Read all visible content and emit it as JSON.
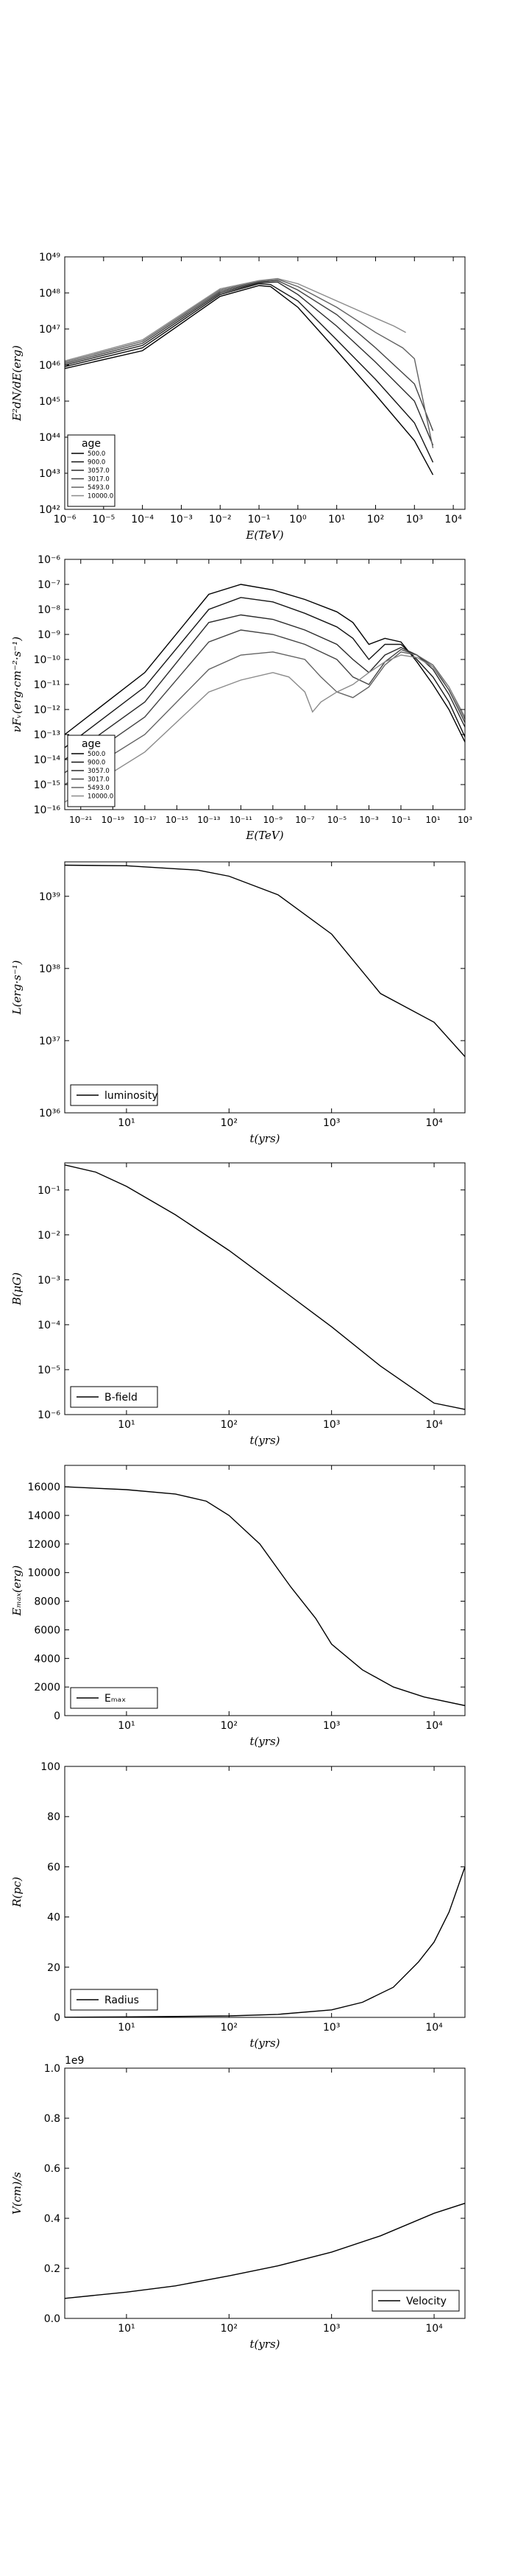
{
  "chart_data": [
    {
      "type": "line",
      "xscale": "log",
      "yscale": "log",
      "xlim": [
        1e-06,
        20000
      ],
      "ylim": [
        1e+42,
        1e+49
      ],
      "xlabel": "E(TeV)",
      "ylabel": "E²dN/dE(erg)",
      "xticks": [
        {
          "v": 1e-06,
          "l": "10⁻⁶"
        },
        {
          "v": 1e-05,
          "l": "10⁻⁵"
        },
        {
          "v": 0.0001,
          "l": "10⁻⁴"
        },
        {
          "v": 0.001,
          "l": "10⁻³"
        },
        {
          "v": 0.01,
          "l": "10⁻²"
        },
        {
          "v": 0.1,
          "l": "10⁻¹"
        },
        {
          "v": 1,
          "l": "10⁰"
        },
        {
          "v": 10,
          "l": "10¹"
        },
        {
          "v": 100,
          "l": "10²"
        },
        {
          "v": 1000,
          "l": "10³"
        },
        {
          "v": 10000,
          "l": "10⁴"
        }
      ],
      "yticks": [
        {
          "v": 1e+42,
          "l": "10⁴²"
        },
        {
          "v": 1e+43,
          "l": "10⁴³"
        },
        {
          "v": 1e+44,
          "l": "10⁴⁴"
        },
        {
          "v": 1e+45,
          "l": "10⁴⁵"
        },
        {
          "v": 1e+46,
          "l": "10⁴⁶"
        },
        {
          "v": 1e+47,
          "l": "10⁴⁷"
        },
        {
          "v": 1e+48,
          "l": "10⁴⁸"
        },
        {
          "v": 1e+49,
          "l": "10⁴⁹"
        }
      ],
      "legend": {
        "title": "age",
        "position": "lower-left"
      },
      "series": [
        {
          "name": "500.0",
          "color": "#000000",
          "x": [
            1e-06,
            0.0001,
            0.01,
            0.1,
            0.2,
            1,
            10,
            100,
            1000,
            3000
          ],
          "y": [
            8e+45,
            2.5e+46,
            8e+47,
            1.6e+48,
            1.5e+48,
            4e+47,
            2.5e+46,
            1.5e+45,
            8e+43,
            9e+42
          ]
        },
        {
          "name": "900.0",
          "color": "#141414",
          "x": [
            1e-06,
            0.0001,
            0.01,
            0.1,
            0.2,
            1,
            10,
            100,
            1000,
            3000
          ],
          "y": [
            9e+45,
            3e+46,
            9e+47,
            1.8e+48,
            1.7e+48,
            6e+47,
            5e+46,
            4e+45,
            2.5e+44,
            2e+43
          ]
        },
        {
          "name": "3057.0",
          "color": "#2a2a2a",
          "x": [
            1e-06,
            0.0001,
            0.01,
            0.1,
            0.3,
            1,
            10,
            100,
            1000,
            3000
          ],
          "y": [
            1e+46,
            3.5e+46,
            1e+48,
            1.9e+48,
            2e+48,
            9e+47,
            1.2e+47,
            1.2e+46,
            1e+45,
            6e+43
          ]
        },
        {
          "name": "3017.0",
          "color": "#434343",
          "x": [
            1e-06,
            0.0001,
            0.01,
            0.1,
            0.3,
            1,
            10,
            100,
            1000,
            3000
          ],
          "y": [
            1.1e+46,
            4e+46,
            1.1e+48,
            2e+48,
            2.2e+48,
            1.2e+48,
            2.5e+47,
            3e+46,
            3e+45,
            1.5e+44
          ]
        },
        {
          "name": "5493.0",
          "color": "#626262",
          "x": [
            1e-06,
            0.0001,
            0.01,
            0.1,
            0.3,
            1,
            10,
            100,
            500,
            1000,
            3000
          ],
          "y": [
            1.2e+46,
            4.5e+46,
            1.2e+48,
            2.1e+48,
            2.4e+48,
            1.5e+48,
            4e+47,
            8e+46,
            3e+46,
            1.5e+46,
            5e+43
          ]
        },
        {
          "name": "10000.0",
          "color": "#8a8a8a",
          "x": [
            1e-06,
            0.0001,
            0.01,
            0.1,
            0.3,
            1,
            10,
            100,
            300,
            600
          ],
          "y": [
            1.3e+46,
            5e+46,
            1.3e+48,
            2.2e+48,
            2.5e+48,
            1.8e+48,
            6e+47,
            2e+47,
            1.2e+47,
            8e+46
          ]
        }
      ]
    },
    {
      "type": "line",
      "xscale": "log",
      "yscale": "log",
      "xlim": [
        1e-22,
        1000
      ],
      "ylim": [
        1e-16,
        1e-06
      ],
      "xlabel": "E(TeV)",
      "ylabel": "νFᵥ(erg·cm⁻²·s⁻¹)",
      "xticks": [
        {
          "v": 1e-21,
          "l": "10⁻²¹"
        },
        {
          "v": 1e-19,
          "l": "10⁻¹⁹"
        },
        {
          "v": 1e-17,
          "l": "10⁻¹⁷"
        },
        {
          "v": 1e-15,
          "l": "10⁻¹⁵"
        },
        {
          "v": 1e-13,
          "l": "10⁻¹³"
        },
        {
          "v": 1e-11,
          "l": "10⁻¹¹"
        },
        {
          "v": 1e-09,
          "l": "10⁻⁹"
        },
        {
          "v": 1e-07,
          "l": "10⁻⁷"
        },
        {
          "v": 1e-05,
          "l": "10⁻⁵"
        },
        {
          "v": 0.001,
          "l": "10⁻³"
        },
        {
          "v": 0.1,
          "l": "10⁻¹"
        },
        {
          "v": 10,
          "l": "10¹"
        },
        {
          "v": 1000,
          "l": "10³"
        }
      ],
      "yticks": [
        {
          "v": 1e-16,
          "l": "10⁻¹⁶"
        },
        {
          "v": 1e-15,
          "l": "10⁻¹⁵"
        },
        {
          "v": 1e-14,
          "l": "10⁻¹⁴"
        },
        {
          "v": 1e-13,
          "l": "10⁻¹³"
        },
        {
          "v": 1e-12,
          "l": "10⁻¹²"
        },
        {
          "v": 1e-11,
          "l": "10⁻¹¹"
        },
        {
          "v": 1e-10,
          "l": "10⁻¹⁰"
        },
        {
          "v": 1e-09,
          "l": "10⁻⁹"
        },
        {
          "v": 1e-08,
          "l": "10⁻⁸"
        },
        {
          "v": 1e-07,
          "l": "10⁻⁷"
        },
        {
          "v": 1e-06,
          "l": "10⁻⁶"
        }
      ],
      "legend": {
        "title": "age",
        "position": "lower-left"
      },
      "series": [
        {
          "name": "500.0",
          "color": "#000000",
          "x": [
            1e-22,
            1e-17,
            1e-13,
            1e-11,
            1e-09,
            1e-07,
            1e-05,
            0.0001,
            0.001,
            0.01,
            0.1,
            1,
            10,
            100,
            1000
          ],
          "y": [
            1e-13,
            3e-11,
            4e-08,
            1e-07,
            6e-08,
            2.5e-08,
            8e-09,
            3e-09,
            4e-10,
            7e-10,
            5e-10,
            8e-11,
            1e-11,
            1e-12,
            5e-14
          ]
        },
        {
          "name": "900.0",
          "color": "#141414",
          "x": [
            1e-22,
            1e-17,
            1e-13,
            1e-11,
            1e-09,
            1e-07,
            1e-05,
            0.0001,
            0.001,
            0.01,
            0.1,
            1,
            10,
            100,
            1000
          ],
          "y": [
            3e-14,
            8e-12,
            1e-08,
            3e-08,
            2e-08,
            7e-09,
            2e-09,
            7e-10,
            1e-10,
            4e-10,
            4e-10,
            1e-10,
            2e-11,
            2e-12,
            8e-14
          ]
        },
        {
          "name": "3057.0",
          "color": "#2a2a2a",
          "x": [
            1e-22,
            1e-17,
            1e-13,
            1e-11,
            1e-09,
            1e-07,
            1e-05,
            0.0001,
            0.001,
            0.01,
            0.1,
            1,
            10,
            100,
            1000
          ],
          "y": [
            1e-14,
            2e-12,
            3e-09,
            6e-09,
            4e-09,
            1.5e-09,
            4e-10,
            1e-10,
            3e-11,
            1.5e-10,
            3e-10,
            1.5e-10,
            4e-11,
            4e-12,
            2e-13
          ]
        },
        {
          "name": "3017.0",
          "color": "#434343",
          "x": [
            1e-22,
            1e-17,
            1e-13,
            1e-11,
            1e-09,
            1e-07,
            1e-05,
            0.0001,
            0.001,
            0.01,
            0.1,
            1,
            10,
            100,
            1000
          ],
          "y": [
            3e-15,
            5e-13,
            5e-10,
            1.5e-09,
            1e-09,
            4e-10,
            1e-10,
            2e-11,
            1e-11,
            8e-11,
            2.5e-10,
            1.5e-10,
            5e-11,
            6e-12,
            3e-13
          ]
        },
        {
          "name": "5493.0",
          "color": "#626262",
          "x": [
            1e-22,
            1e-17,
            1e-13,
            1e-11,
            1e-09,
            1e-07,
            1e-06,
            1e-05,
            0.0001,
            0.001,
            0.01,
            0.1,
            1,
            10,
            100,
            1000
          ],
          "y": [
            1e-15,
            1e-13,
            4e-11,
            1.5e-10,
            2e-10,
            1e-10,
            2e-11,
            5e-12,
            3e-12,
            8e-12,
            6e-11,
            2e-10,
            1.5e-10,
            6e-11,
            8e-12,
            4e-13
          ]
        },
        {
          "name": "10000.0",
          "color": "#8a8a8a",
          "x": [
            1e-22,
            1e-17,
            1e-13,
            1e-11,
            1e-09,
            1e-08,
            1e-07,
            3e-07,
            1e-06,
            1e-05,
            0.0001,
            0.001,
            0.01,
            0.1,
            1,
            10,
            100,
            1000
          ],
          "y": [
            2e-16,
            2e-14,
            5e-12,
            1.5e-11,
            3e-11,
            2e-11,
            5e-12,
            8e-13,
            2e-12,
            5e-12,
            1e-11,
            3e-11,
            8e-11,
            1.5e-10,
            1.2e-10,
            5e-11,
            8e-12,
            5e-13
          ]
        }
      ]
    },
    {
      "type": "line",
      "xscale": "log",
      "yscale": "log",
      "xlim": [
        2.5,
        20000
      ],
      "ylim": [
        1e+36,
        3e+39
      ],
      "xlabel": "t(yrs)",
      "ylabel": "L(erg·s⁻¹)",
      "xticks": [
        {
          "v": 10,
          "l": "10¹"
        },
        {
          "v": 100,
          "l": "10²"
        },
        {
          "v": 1000,
          "l": "10³"
        },
        {
          "v": 10000,
          "l": "10⁴"
        }
      ],
      "yticks": [
        {
          "v": 1e+36,
          "l": "10³⁶"
        },
        {
          "v": 1e+37,
          "l": "10³⁷"
        },
        {
          "v": 1e+38,
          "l": "10³⁸"
        },
        {
          "v": 1e+39,
          "l": "10³⁹"
        }
      ],
      "legend": {
        "position": "lower-left"
      },
      "series": [
        {
          "name": "luminosity",
          "color": "#000000",
          "x": [
            2.5,
            10,
            50,
            100,
            300,
            1000,
            3000,
            10000,
            20000
          ],
          "y": [
            2.7e+39,
            2.65e+39,
            2.3e+39,
            1.9e+39,
            1.05e+39,
            3e+38,
            4.5e+37,
            1.8e+37,
            6e+36
          ]
        }
      ]
    },
    {
      "type": "line",
      "xscale": "log",
      "yscale": "log",
      "xlim": [
        2.5,
        20000
      ],
      "ylim": [
        1e-06,
        0.4
      ],
      "xlabel": "t(yrs)",
      "ylabel": "B(μG)",
      "xticks": [
        {
          "v": 10,
          "l": "10¹"
        },
        {
          "v": 100,
          "l": "10²"
        },
        {
          "v": 1000,
          "l": "10³"
        },
        {
          "v": 10000,
          "l": "10⁴"
        }
      ],
      "yticks": [
        {
          "v": 1e-06,
          "l": "10⁻⁶"
        },
        {
          "v": 1e-05,
          "l": "10⁻⁵"
        },
        {
          "v": 0.0001,
          "l": "10⁻⁴"
        },
        {
          "v": 0.001,
          "l": "10⁻³"
        },
        {
          "v": 0.01,
          "l": "10⁻²"
        },
        {
          "v": 0.1,
          "l": "10⁻¹"
        }
      ],
      "legend": {
        "position": "lower-left"
      },
      "series": [
        {
          "name": "B-field",
          "color": "#000000",
          "x": [
            2.5,
            5,
            10,
            30,
            100,
            300,
            1000,
            3000,
            10000,
            20000
          ],
          "y": [
            0.36,
            0.25,
            0.12,
            0.028,
            0.0045,
            0.0007,
            9e-05,
            1.2e-05,
            1.8e-06,
            1.3e-06
          ]
        }
      ]
    },
    {
      "type": "line",
      "xscale": "log",
      "yscale": "linear",
      "xlim": [
        2.5,
        20000
      ],
      "ylim": [
        0,
        17500
      ],
      "xlabel": "t(yrs)",
      "ylabel": "Eₘₐₓ(erg)",
      "xticks": [
        {
          "v": 10,
          "l": "10¹"
        },
        {
          "v": 100,
          "l": "10²"
        },
        {
          "v": 1000,
          "l": "10³"
        },
        {
          "v": 10000,
          "l": "10⁴"
        }
      ],
      "yticks": [
        {
          "v": 0,
          "l": "0"
        },
        {
          "v": 2000,
          "l": "2000"
        },
        {
          "v": 4000,
          "l": "4000"
        },
        {
          "v": 6000,
          "l": "6000"
        },
        {
          "v": 8000,
          "l": "8000"
        },
        {
          "v": 10000,
          "l": "10000"
        },
        {
          "v": 12000,
          "l": "12000"
        },
        {
          "v": 14000,
          "l": "14000"
        },
        {
          "v": 16000,
          "l": "16000"
        }
      ],
      "legend": {
        "position": "lower-left"
      },
      "series": [
        {
          "name": "Eₘₐₓ",
          "color": "#000000",
          "x": [
            2.5,
            10,
            30,
            60,
            100,
            200,
            400,
            700,
            1000,
            2000,
            4000,
            8000,
            20000
          ],
          "y": [
            16000,
            15800,
            15500,
            15000,
            14000,
            12000,
            9000,
            6800,
            5000,
            3200,
            2000,
            1300,
            700
          ]
        }
      ]
    },
    {
      "type": "line",
      "xscale": "log",
      "yscale": "linear",
      "xlim": [
        2.5,
        20000
      ],
      "ylim": [
        0,
        100
      ],
      "xlabel": "t(yrs)",
      "ylabel": "R(pc)",
      "xticks": [
        {
          "v": 10,
          "l": "10¹"
        },
        {
          "v": 100,
          "l": "10²"
        },
        {
          "v": 1000,
          "l": "10³"
        },
        {
          "v": 10000,
          "l": "10⁴"
        }
      ],
      "yticks": [
        {
          "v": 0,
          "l": "0"
        },
        {
          "v": 20,
          "l": "20"
        },
        {
          "v": 40,
          "l": "40"
        },
        {
          "v": 60,
          "l": "60"
        },
        {
          "v": 80,
          "l": "80"
        },
        {
          "v": 100,
          "l": "100"
        }
      ],
      "legend": {
        "position": "lower-left"
      },
      "series": [
        {
          "name": "Radius",
          "color": "#000000",
          "x": [
            2.5,
            10,
            100,
            300,
            1000,
            2000,
            4000,
            7000,
            10000,
            14000,
            20000
          ],
          "y": [
            0.05,
            0.2,
            0.6,
            1.2,
            3,
            6,
            12,
            22,
            30,
            42,
            60
          ]
        }
      ]
    },
    {
      "type": "line",
      "xscale": "log",
      "yscale": "linear",
      "xlim": [
        2.5,
        20000
      ],
      "ylim": [
        0,
        1.0
      ],
      "xlabel": "t(yrs)",
      "ylabel": "V(cm)/s",
      "offset_label": "1e9",
      "xticks": [
        {
          "v": 10,
          "l": "10¹"
        },
        {
          "v": 100,
          "l": "10²"
        },
        {
          "v": 1000,
          "l": "10³"
        },
        {
          "v": 10000,
          "l": "10⁴"
        }
      ],
      "yticks": [
        {
          "v": 0,
          "l": "0.0"
        },
        {
          "v": 0.2,
          "l": "0.2"
        },
        {
          "v": 0.4,
          "l": "0.4"
        },
        {
          "v": 0.6,
          "l": "0.6"
        },
        {
          "v": 0.8,
          "l": "0.8"
        },
        {
          "v": 1.0,
          "l": "1.0"
        }
      ],
      "legend": {
        "position": "lower-right"
      },
      "series": [
        {
          "name": "Velocity",
          "color": "#000000",
          "x": [
            2.5,
            10,
            30,
            100,
            300,
            1000,
            3000,
            10000,
            20000
          ],
          "y": [
            0.08,
            0.105,
            0.13,
            0.17,
            0.21,
            0.265,
            0.33,
            0.42,
            0.46
          ]
        }
      ]
    }
  ]
}
